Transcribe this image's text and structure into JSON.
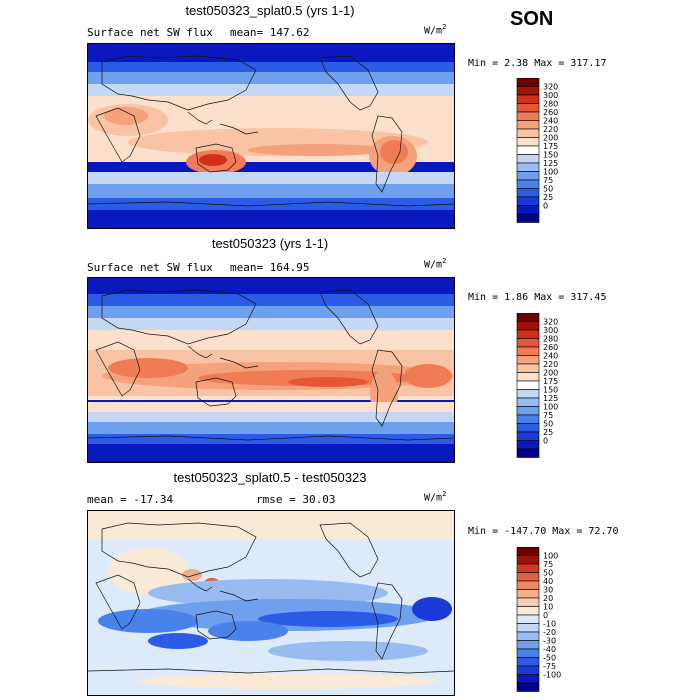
{
  "season": "SON",
  "units": {
    "base": "W/m",
    "exp": "2"
  },
  "colors": {
    "sw_scale": [
      "#00008f",
      "#0a18c0",
      "#1a3ad8",
      "#2c5ce6",
      "#4a82ec",
      "#6ea0ee",
      "#98bcf2",
      "#c4d8f6",
      "#ffffff",
      "#fde0cc",
      "#f9c4a4",
      "#f5a27c",
      "#f07c56",
      "#e45636",
      "#d03018",
      "#a01408",
      "#6e0000"
    ],
    "diff_scale": [
      "#00008f",
      "#0a18c0",
      "#1a3ad8",
      "#2c5ce6",
      "#4a82ec",
      "#6ea0ee",
      "#98bcf2",
      "#c4d8f6",
      "#ddeafa",
      "#f9ead8",
      "#f5cdb2",
      "#f2ae8c",
      "#ec8866",
      "#e0603e",
      "#cc3820",
      "#9c1208",
      "#6e0000"
    ]
  },
  "panels": [
    {
      "title": "test050323_splat0.5 (yrs 1-1)",
      "label_left": "Surface net SW flux",
      "label_stat": "mean= 147.62",
      "min_max": "Min =   2.38 Max = 317.17",
      "scale": "sw",
      "colorbar_labels": [
        "320",
        "300",
        "280",
        "260",
        "240",
        "220",
        "200",
        "175",
        "150",
        "125",
        "100",
        "75",
        "50",
        "25",
        "0"
      ]
    },
    {
      "title": "test050323 (yrs 1-1)",
      "label_left": "Surface net SW flux",
      "label_stat": "mean= 164.95",
      "min_max": "Min =   1.86 Max = 317.45",
      "scale": "sw",
      "colorbar_labels": [
        "320",
        "300",
        "280",
        "260",
        "240",
        "220",
        "200",
        "175",
        "150",
        "125",
        "100",
        "75",
        "50",
        "25",
        "0"
      ]
    },
    {
      "title": "test050323_splat0.5 - test050323",
      "label_left": "mean = -17.34",
      "label_stat": "rmse =  30.03",
      "min_max": "Min = -147.70 Max =  72.70",
      "scale": "diff",
      "colorbar_labels": [
        "100",
        "75",
        "50",
        "40",
        "30",
        "20",
        "10",
        "0",
        "-10",
        "-20",
        "-30",
        "-40",
        "-50",
        "-75",
        "-100"
      ]
    }
  ],
  "chart_data": [
    {
      "type": "heatmap",
      "title": "test050323_splat0.5 (yrs 1-1)",
      "variable": "Surface net SW flux",
      "season": "SON",
      "units": "W/m2",
      "mean": 147.62,
      "min": 2.38,
      "max": 317.17,
      "contour_levels": [
        0,
        25,
        50,
        75,
        100,
        125,
        150,
        175,
        200,
        220,
        240,
        260,
        280,
        300,
        320
      ]
    },
    {
      "type": "heatmap",
      "title": "test050323 (yrs 1-1)",
      "variable": "Surface net SW flux",
      "season": "SON",
      "units": "W/m2",
      "mean": 164.95,
      "min": 1.86,
      "max": 317.45,
      "contour_levels": [
        0,
        25,
        50,
        75,
        100,
        125,
        150,
        175,
        200,
        220,
        240,
        260,
        280,
        300,
        320
      ]
    },
    {
      "type": "heatmap",
      "title": "test050323_splat0.5 - test050323",
      "season": "SON",
      "units": "W/m2",
      "mean": -17.34,
      "rmse": 30.03,
      "min": -147.7,
      "max": 72.7,
      "contour_levels": [
        -100,
        -75,
        -50,
        -40,
        -30,
        -20,
        -10,
        0,
        10,
        20,
        30,
        40,
        50,
        75,
        100
      ]
    }
  ]
}
